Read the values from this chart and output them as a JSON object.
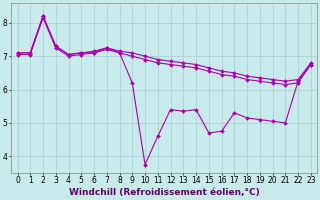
{
  "line_smooth1": {
    "x": [
      0,
      1,
      2,
      3,
      4,
      5,
      6,
      7,
      8,
      9,
      10,
      11,
      12,
      13,
      14,
      15,
      16,
      17,
      18,
      19,
      20,
      21,
      22,
      23
    ],
    "y": [
      7.1,
      7.1,
      8.2,
      7.3,
      7.05,
      7.1,
      7.15,
      7.25,
      7.15,
      7.1,
      7.0,
      6.9,
      6.85,
      6.8,
      6.75,
      6.65,
      6.55,
      6.5,
      6.4,
      6.35,
      6.3,
      6.25,
      6.3,
      6.8
    ]
  },
  "line_smooth2": {
    "x": [
      0,
      1,
      2,
      3,
      4,
      5,
      6,
      7,
      8,
      9,
      10,
      11,
      12,
      13,
      14,
      15,
      16,
      17,
      18,
      19,
      20,
      21,
      22,
      23
    ],
    "y": [
      7.05,
      7.05,
      8.15,
      7.25,
      7.0,
      7.05,
      7.1,
      7.2,
      7.1,
      7.0,
      6.9,
      6.8,
      6.75,
      6.7,
      6.65,
      6.55,
      6.45,
      6.4,
      6.3,
      6.25,
      6.2,
      6.15,
      6.2,
      6.75
    ]
  },
  "line_zigzag": {
    "x": [
      0,
      1,
      2,
      3,
      4,
      5,
      6,
      7,
      8,
      9,
      10,
      11,
      12,
      13,
      14,
      15,
      16,
      17,
      18,
      19,
      20,
      21,
      22,
      23
    ],
    "y": [
      7.1,
      7.1,
      8.2,
      7.3,
      7.05,
      7.1,
      7.1,
      7.25,
      7.1,
      6.2,
      3.75,
      4.6,
      5.4,
      5.35,
      5.4,
      4.7,
      4.75,
      5.3,
      5.15,
      5.1,
      5.05,
      5.0,
      6.25,
      6.75
    ]
  },
  "line_color": "#aa00aa",
  "marker": "D",
  "markersize": 2.0,
  "linewidth": 0.8,
  "bg_color": "#c8eaea",
  "grid_color": "#aacccc",
  "xlabel": "Windchill (Refroidissement éolien,°C)",
  "xlabel_fontsize": 6.5,
  "xlabel_color": "#660066",
  "ylabel_ticks": [
    4,
    5,
    6,
    7,
    8
  ],
  "xticks": [
    0,
    1,
    2,
    3,
    4,
    5,
    6,
    7,
    8,
    9,
    10,
    11,
    12,
    13,
    14,
    15,
    16,
    17,
    18,
    19,
    20,
    21,
    22,
    23
  ],
  "xlim": [
    -0.5,
    23.5
  ],
  "ylim": [
    3.5,
    8.6
  ],
  "tick_fontsize": 5.5
}
